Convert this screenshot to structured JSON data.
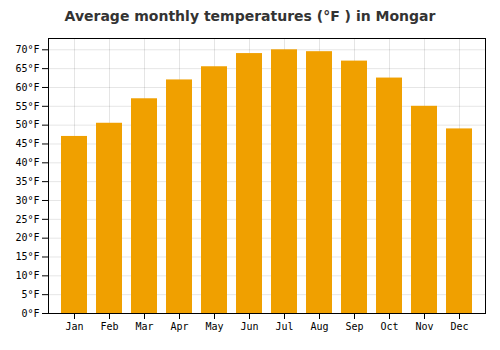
{
  "chart_data": {
    "type": "bar",
    "title": "Average monthly temperatures (°F ) in Mongar",
    "categories": [
      "Jan",
      "Feb",
      "Mar",
      "Apr",
      "May",
      "Jun",
      "Jul",
      "Aug",
      "Sep",
      "Oct",
      "Nov",
      "Dec"
    ],
    "values": [
      47,
      50.5,
      57,
      62,
      65.5,
      69,
      70,
      69.5,
      67,
      62.5,
      55,
      49
    ],
    "color": "#F0A000",
    "ylim": [
      0,
      73
    ],
    "yticks": [
      {
        "value": 0,
        "label": "0°F"
      },
      {
        "value": 5,
        "label": "5°F"
      },
      {
        "value": 10,
        "label": "10°F"
      },
      {
        "value": 15,
        "label": "15°F"
      },
      {
        "value": 20,
        "label": "20°F"
      },
      {
        "value": 25,
        "label": "25°F"
      },
      {
        "value": 30,
        "label": "30°F"
      },
      {
        "value": 35,
        "label": "35°F"
      },
      {
        "value": 40,
        "label": "40°F"
      },
      {
        "value": 45,
        "label": "45°F"
      },
      {
        "value": 50,
        "label": "50°F"
      },
      {
        "value": 55,
        "label": "55°F"
      },
      {
        "value": 60,
        "label": "60°F"
      },
      {
        "value": 65,
        "label": "65°F"
      },
      {
        "value": 70,
        "label": "70°F"
      }
    ],
    "grid": true
  }
}
